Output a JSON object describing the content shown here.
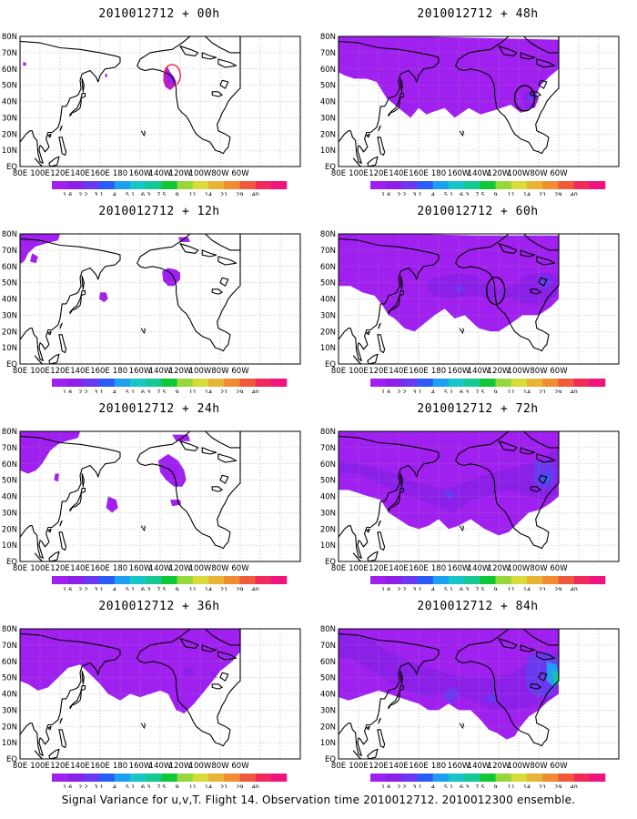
{
  "caption": "Signal Variance for u,v,T. Flight 14. Observation time 2010012712. 2010012300 ensemble.",
  "map": {
    "lat_labels": [
      "80N",
      "70N",
      "60N",
      "50N",
      "40N",
      "30N",
      "20N",
      "10N",
      "EQ"
    ],
    "lon_labels": [
      "80E",
      "100E",
      "120E",
      "140E",
      "160E",
      "180",
      "160W",
      "140W",
      "120W",
      "100W",
      "80W",
      "60W"
    ]
  },
  "colorbar": {
    "labels": [
      "1.6",
      "2.2",
      "3.1",
      "4",
      "5.1",
      "6.3",
      "7.5",
      "9",
      "11",
      "14",
      "21",
      "29",
      "40"
    ],
    "colors": [
      "#a020f0",
      "#8c1fe8",
      "#6a38f0",
      "#2b5cf5",
      "#1ea0f0",
      "#17c7c7",
      "#16c893",
      "#10c835",
      "#96d83c",
      "#d8dc38",
      "#e8b436",
      "#f08c32",
      "#f05a3a",
      "#f02a5a",
      "#f0147e"
    ]
  },
  "panels": [
    {
      "title": "2010012712 + 00h"
    },
    {
      "title": "2010012712 + 48h"
    },
    {
      "title": "2010012712 + 12h"
    },
    {
      "title": "2010012712 + 60h"
    },
    {
      "title": "2010012712 + 24h"
    },
    {
      "title": "2010012712 + 72h"
    },
    {
      "title": "2010012712 + 36h"
    },
    {
      "title": "2010012712 + 84h"
    }
  ]
}
